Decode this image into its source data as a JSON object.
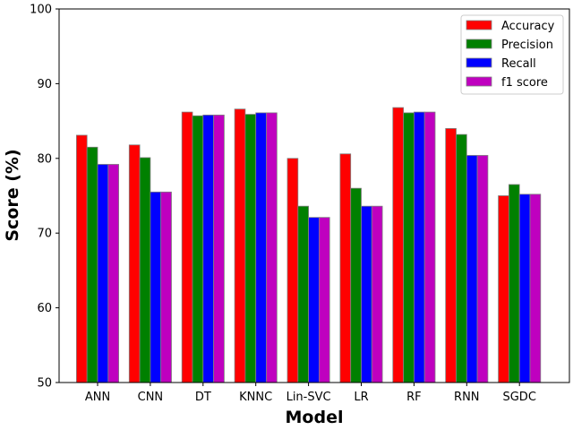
{
  "chart_data": {
    "type": "bar",
    "title": "",
    "xlabel": "Model",
    "ylabel": "Score (%)",
    "ylim": [
      50,
      100
    ],
    "yticks": [
      50,
      60,
      70,
      80,
      90,
      100
    ],
    "grid": false,
    "legend_position": "top-right",
    "categories": [
      "ANN",
      "CNN",
      "DT",
      "KNNC",
      "Lin-SVC",
      "LR",
      "RF",
      "RNN",
      "SGDC"
    ],
    "series": [
      {
        "name": "Accuracy",
        "color": "#ff0000",
        "values": [
          83.1,
          81.8,
          86.2,
          86.6,
          80.0,
          80.6,
          86.8,
          84.0,
          75.0
        ]
      },
      {
        "name": "Precision",
        "color": "#008000",
        "values": [
          81.5,
          80.1,
          85.7,
          85.9,
          73.6,
          76.0,
          86.1,
          83.2,
          76.5
        ]
      },
      {
        "name": "Recall",
        "color": "#0000ff",
        "values": [
          79.2,
          75.5,
          85.8,
          86.1,
          72.1,
          73.6,
          86.2,
          80.4,
          75.2
        ]
      },
      {
        "name": "f1 score",
        "color": "#bf00bf",
        "values": [
          79.2,
          75.5,
          85.8,
          86.1,
          72.1,
          73.6,
          86.2,
          80.4,
          75.2
        ]
      }
    ]
  }
}
